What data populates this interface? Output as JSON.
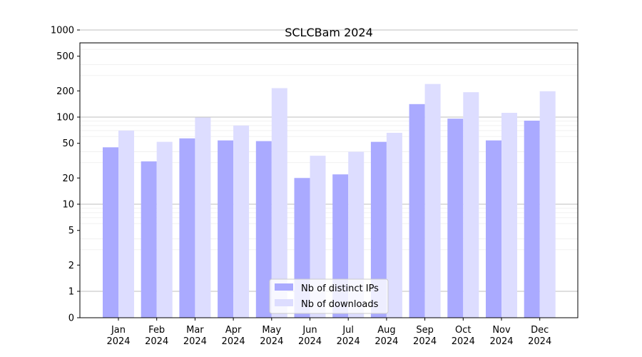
{
  "chart_data": {
    "type": "bar",
    "title": "SCLCBam 2024",
    "xlabel": "",
    "ylabel": "",
    "scale": "symlog",
    "grid": true,
    "legend_position": "bottom-center",
    "categories": [
      {
        "month": "Jan",
        "year": "2024"
      },
      {
        "month": "Feb",
        "year": "2024"
      },
      {
        "month": "Mar",
        "year": "2024"
      },
      {
        "month": "Apr",
        "year": "2024"
      },
      {
        "month": "May",
        "year": "2024"
      },
      {
        "month": "Jun",
        "year": "2024"
      },
      {
        "month": "Jul",
        "year": "2024"
      },
      {
        "month": "Aug",
        "year": "2024"
      },
      {
        "month": "Sep",
        "year": "2024"
      },
      {
        "month": "Oct",
        "year": "2024"
      },
      {
        "month": "Nov",
        "year": "2024"
      },
      {
        "month": "Dec",
        "year": "2024"
      }
    ],
    "yticks": [
      0,
      1,
      2,
      5,
      10,
      20,
      50,
      100,
      200,
      500,
      1000
    ],
    "ytick_labels": [
      "0",
      "1",
      "2",
      "5",
      "10",
      "20",
      "50",
      "100",
      "200",
      "500",
      "1000"
    ],
    "series": [
      {
        "name": "Nb of distinct IPs",
        "color": "#aaaaff",
        "values": [
          45,
          31,
          57,
          54,
          53,
          20,
          22,
          52,
          141,
          96,
          54,
          91
        ]
      },
      {
        "name": "Nb of downloads",
        "color": "#ddddff",
        "values": [
          70,
          52,
          99,
          80,
          215,
          36,
          40,
          66,
          240,
          193,
          112,
          198
        ]
      }
    ]
  }
}
